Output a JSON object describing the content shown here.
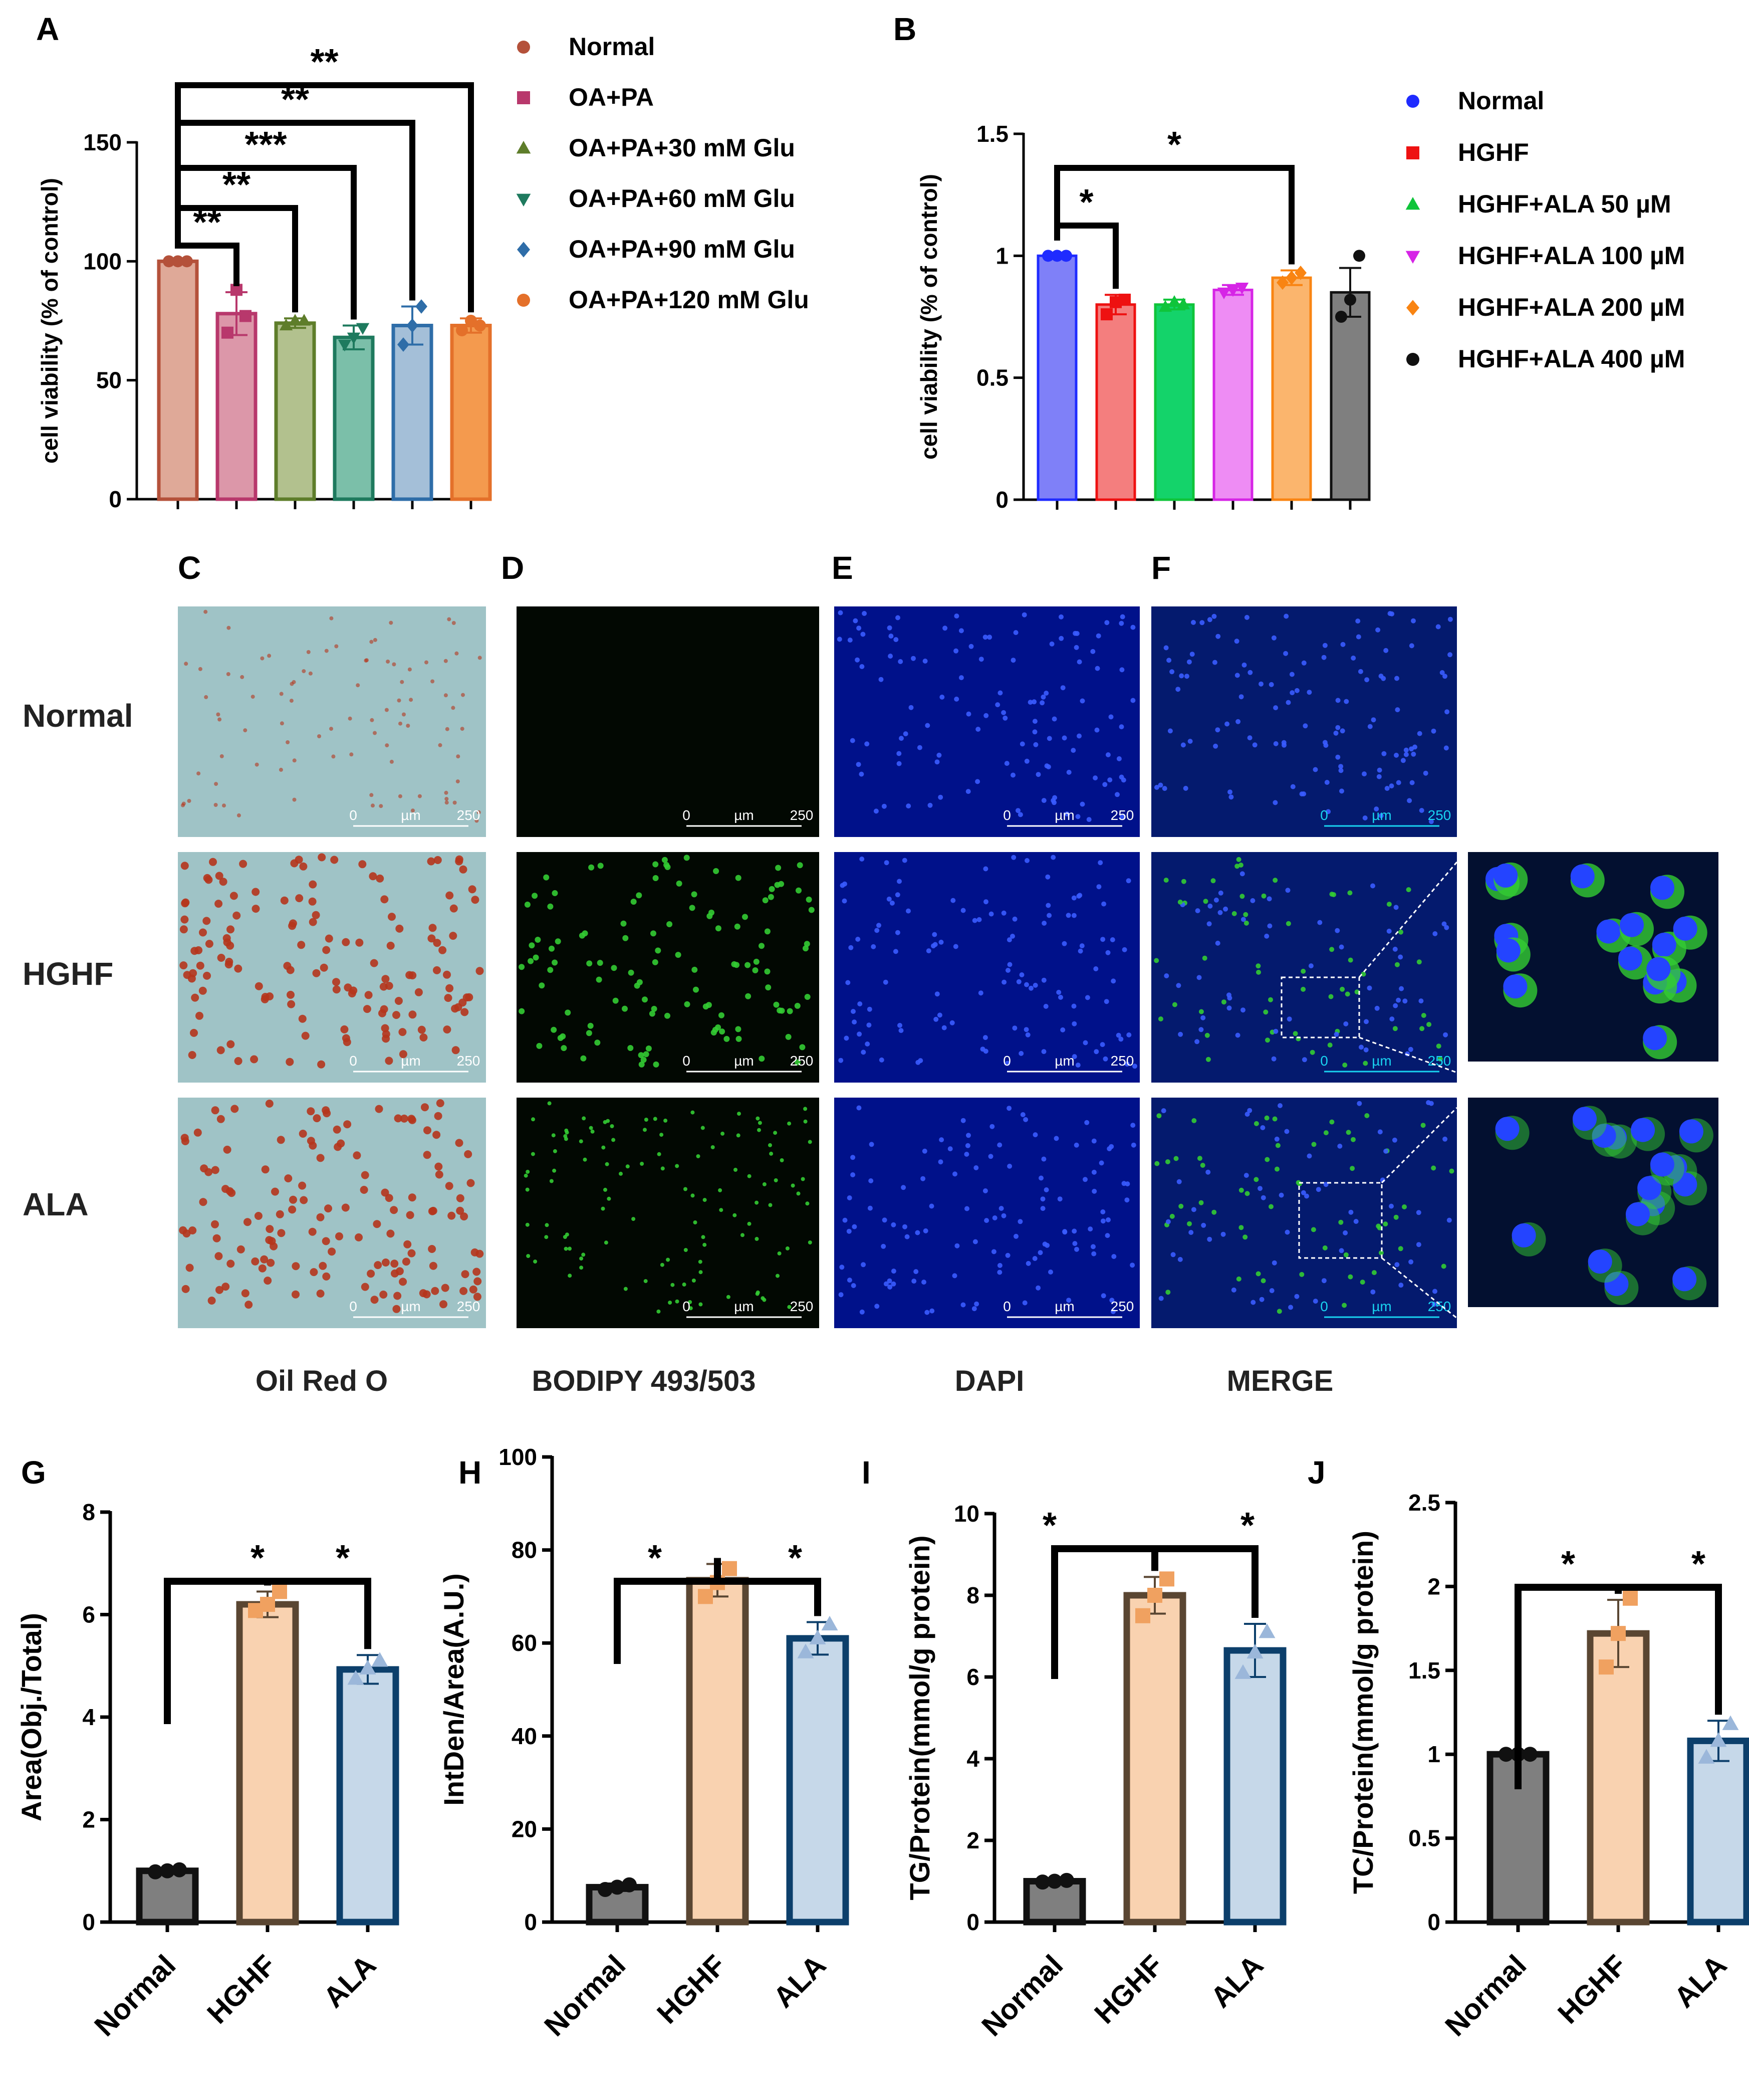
{
  "panel_labels": {
    "A": "A",
    "B": "B",
    "C": "C",
    "D": "D",
    "E": "E",
    "F": "F",
    "G": "G",
    "H": "H",
    "I": "I",
    "J": "J"
  },
  "micrographs": {
    "row_labels": [
      "Normal",
      "HGHF",
      "ALA"
    ],
    "column_labels": [
      "Oil Red O",
      "BODIPY 493/503",
      "DAPI",
      "MERGE"
    ],
    "scale_bar": {
      "start": "0",
      "unit": "µm",
      "end": "250"
    },
    "colors": {
      "oilredo": "#9fc3c6",
      "bodipy": "#020802",
      "dapi": "#00118a",
      "merge": "#041a6e",
      "dot_blue": "#3a5cff",
      "dot_green": "#33cc33",
      "dot_red": "#b5351c",
      "cyan": "#19d3f0"
    }
  },
  "chart_data": [
    {
      "panel": "A",
      "type": "bar",
      "categories": [
        "Normal",
        "OA+PA",
        "OA+PA+30 mM Glu",
        "OA+PA+60 mM Glu",
        "OA+PA+90 mM Glu",
        "OA+PA+120 mM Glu"
      ],
      "legend": [
        "Normal",
        "OA+PA",
        "OA+PA+30 mM Glu",
        "OA+PA+60 mM Glu",
        "OA+PA+90 mM Glu",
        "OA+PA+120 mM Glu"
      ],
      "values": [
        100,
        78,
        74,
        68,
        73,
        73
      ],
      "errors": [
        1,
        9,
        2,
        5,
        8,
        3
      ],
      "points": [
        [
          100,
          100,
          100
        ],
        [
          70,
          88,
          77
        ],
        [
          73,
          75,
          75
        ],
        [
          65,
          68,
          72
        ],
        [
          65,
          73,
          81
        ],
        [
          71,
          75,
          73
        ]
      ],
      "colors": [
        "#b4513a",
        "#b8386c",
        "#5e7d2a",
        "#1e7a5e",
        "#2e6da8",
        "#e4702a"
      ],
      "fills": [
        "#dfa998",
        "#dc97a9",
        "#b2c18e",
        "#7bbfa9",
        "#a4bfd8",
        "#f49a4e"
      ],
      "markers": [
        "circle",
        "square",
        "triangle",
        "triangle-down",
        "diamond",
        "circle"
      ],
      "ylabel": "cell viability (% of control)",
      "ylim": [
        0,
        150
      ],
      "yticks": [
        0,
        50,
        100,
        150
      ],
      "legend_placement": "right",
      "comparisons": [
        {
          "from": 0,
          "to": 1,
          "label": "**"
        },
        {
          "from": 0,
          "to": 2,
          "label": "**"
        },
        {
          "from": 0,
          "to": 3,
          "label": "***"
        },
        {
          "from": 0,
          "to": 4,
          "label": "**"
        },
        {
          "from": 0,
          "to": 5,
          "label": "**"
        }
      ]
    },
    {
      "panel": "B",
      "type": "bar",
      "categories": [
        "Normal",
        "HGHF",
        "HGHF+ALA 50 µM",
        "HGHF+ALA 100 µM",
        "HGHF+ALA 200 µM",
        "HGHF+ALA 400 µM"
      ],
      "legend": [
        "Normal",
        "HGHF",
        "HGHF+ALA 50 µM",
        "HGHF+ALA 100 µM",
        "HGHF+ALA 200 µM",
        "HGHF+ALA 400 µM"
      ],
      "values": [
        1.0,
        0.8,
        0.8,
        0.86,
        0.91,
        0.85
      ],
      "errors": [
        0.01,
        0.04,
        0.02,
        0.02,
        0.03,
        0.1
      ],
      "points": [
        [
          1.0,
          1.0,
          1.0
        ],
        [
          0.76,
          0.81,
          0.82
        ],
        [
          0.79,
          0.81,
          0.8
        ],
        [
          0.85,
          0.86,
          0.87
        ],
        [
          0.89,
          0.91,
          0.93
        ],
        [
          0.75,
          0.82,
          1.0
        ]
      ],
      "colors": [
        "#1f2bff",
        "#ee1111",
        "#0fc43a",
        "#d624e6",
        "#f98412",
        "#111111"
      ],
      "fills": [
        "#7f80f8",
        "#f47e7e",
        "#14d36a",
        "#ee8cf4",
        "#fbb56d",
        "#7f7f7f"
      ],
      "markers": [
        "circle",
        "square",
        "triangle",
        "triangle-down",
        "diamond",
        "circle"
      ],
      "ylabel": "cell viability (% of control)",
      "ylim": [
        0,
        1.5
      ],
      "yticks": [
        0.0,
        0.5,
        1.0,
        1.5
      ],
      "legend_placement": "right",
      "comparisons": [
        {
          "from": 0,
          "to": 1,
          "label": "*"
        },
        {
          "from": 0,
          "to": 4,
          "label": "*"
        }
      ]
    },
    {
      "panel": "G",
      "type": "bar",
      "categories": [
        "Normal",
        "HGHF",
        "ALA"
      ],
      "values": [
        1.0,
        6.2,
        4.93
      ],
      "errors": [
        0.05,
        0.25,
        0.28
      ],
      "points": [
        [
          0.98,
          1.0,
          1.02
        ],
        [
          6.08,
          6.2,
          6.45
        ],
        [
          4.75,
          4.95,
          5.1
        ]
      ],
      "ylabel": "Area(Obj./Total)",
      "ylim": [
        0,
        8
      ],
      "yticks": [
        0,
        2,
        4,
        6,
        8
      ],
      "comparisons": [
        {
          "from": 0,
          "to": 1,
          "label": "*"
        },
        {
          "from": 1,
          "to": 2,
          "label": "*"
        }
      ]
    },
    {
      "panel": "H",
      "type": "bar",
      "categories": [
        "Normal",
        "HGHF",
        "ALA"
      ],
      "values": [
        7.5,
        73.5,
        61
      ],
      "errors": [
        0.8,
        3.5,
        3.5
      ],
      "points": [
        [
          7,
          7.5,
          8
        ],
        [
          70,
          73,
          76
        ],
        [
          58,
          61,
          64
        ]
      ],
      "ylabel": "IntDen/Area(A.U.)",
      "ylim": [
        0,
        100
      ],
      "yticks": [
        0,
        20,
        40,
        60,
        80,
        100
      ],
      "comparisons": [
        {
          "from": 0,
          "to": 1,
          "label": "*"
        },
        {
          "from": 1,
          "to": 2,
          "label": "*"
        }
      ]
    },
    {
      "panel": "I",
      "type": "bar",
      "categories": [
        "Normal",
        "HGHF",
        "ALA"
      ],
      "values": [
        1.0,
        8.0,
        6.65
      ],
      "errors": [
        0.03,
        0.45,
        0.65
      ],
      "points": [
        [
          0.98,
          1.0,
          1.02
        ],
        [
          7.5,
          8.0,
          8.4
        ],
        [
          6.1,
          6.6,
          7.1
        ]
      ],
      "ylabel": "TG/Protein(mmol/g protein)",
      "ylim": [
        0,
        10
      ],
      "yticks": [
        0,
        2,
        4,
        6,
        8,
        10
      ],
      "comparisons": [
        {
          "from": 0,
          "to": 1,
          "label": "*"
        },
        {
          "from": 1,
          "to": 2,
          "label": "*"
        }
      ]
    },
    {
      "panel": "J",
      "type": "bar",
      "categories": [
        "Normal",
        "HGHF",
        "ALA"
      ],
      "values": [
        1.0,
        1.72,
        1.08
      ],
      "errors": [
        0.02,
        0.2,
        0.12
      ],
      "points": [
        [
          1.0,
          1.0,
          1.0
        ],
        [
          1.52,
          1.72,
          1.93
        ],
        [
          0.98,
          1.08,
          1.18
        ]
      ],
      "ylabel": "TC/Protein(mmol/g protein)",
      "ylim": [
        0,
        2.5
      ],
      "yticks": [
        0.0,
        0.5,
        1.0,
        1.5,
        2.0,
        2.5
      ],
      "comparisons": [
        {
          "from": 0,
          "to": 1,
          "label": "*"
        },
        {
          "from": 1,
          "to": 2,
          "label": "*"
        }
      ]
    }
  ],
  "bottom_palette": {
    "bar_fills": [
      "#7f7f7f",
      "#f9d2b0",
      "#c6d8e9"
    ],
    "bar_edges": [
      "#111111",
      "#5a4632",
      "#0c3f6b"
    ],
    "point_colors": [
      "#111111",
      "#f0a160",
      "#9bb7da"
    ],
    "markers": [
      "circle",
      "square",
      "triangle"
    ]
  }
}
